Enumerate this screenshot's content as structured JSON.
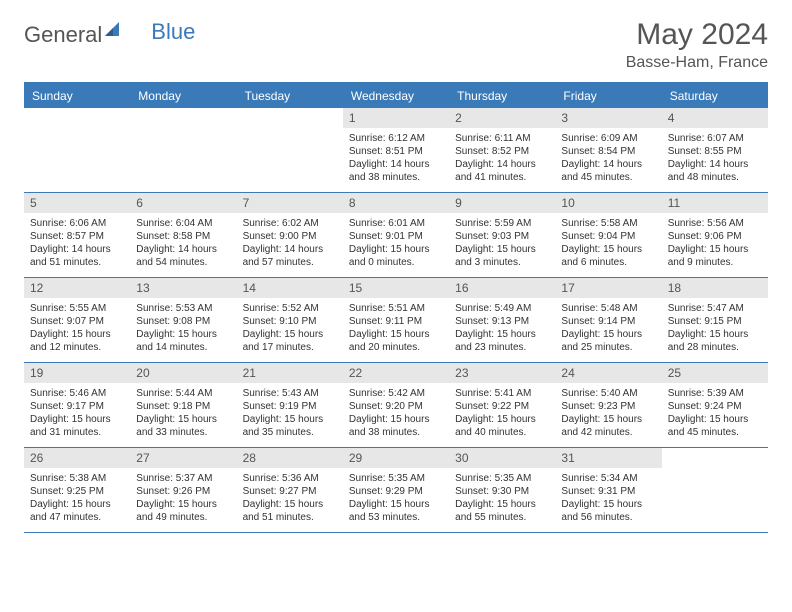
{
  "logo": {
    "text1": "General",
    "text2": "Blue"
  },
  "title": "May 2024",
  "location": "Basse-Ham, France",
  "colors": {
    "accent": "#3a7ab8",
    "dayband": "#e7e7e7",
    "text": "#555555"
  },
  "dayNames": [
    "Sunday",
    "Monday",
    "Tuesday",
    "Wednesday",
    "Thursday",
    "Friday",
    "Saturday"
  ],
  "weeks": [
    [
      {
        "n": "",
        "sr": "",
        "ss": "",
        "dl": ""
      },
      {
        "n": "",
        "sr": "",
        "ss": "",
        "dl": ""
      },
      {
        "n": "",
        "sr": "",
        "ss": "",
        "dl": ""
      },
      {
        "n": "1",
        "sr": "Sunrise: 6:12 AM",
        "ss": "Sunset: 8:51 PM",
        "dl": "Daylight: 14 hours and 38 minutes."
      },
      {
        "n": "2",
        "sr": "Sunrise: 6:11 AM",
        "ss": "Sunset: 8:52 PM",
        "dl": "Daylight: 14 hours and 41 minutes."
      },
      {
        "n": "3",
        "sr": "Sunrise: 6:09 AM",
        "ss": "Sunset: 8:54 PM",
        "dl": "Daylight: 14 hours and 45 minutes."
      },
      {
        "n": "4",
        "sr": "Sunrise: 6:07 AM",
        "ss": "Sunset: 8:55 PM",
        "dl": "Daylight: 14 hours and 48 minutes."
      }
    ],
    [
      {
        "n": "5",
        "sr": "Sunrise: 6:06 AM",
        "ss": "Sunset: 8:57 PM",
        "dl": "Daylight: 14 hours and 51 minutes."
      },
      {
        "n": "6",
        "sr": "Sunrise: 6:04 AM",
        "ss": "Sunset: 8:58 PM",
        "dl": "Daylight: 14 hours and 54 minutes."
      },
      {
        "n": "7",
        "sr": "Sunrise: 6:02 AM",
        "ss": "Sunset: 9:00 PM",
        "dl": "Daylight: 14 hours and 57 minutes."
      },
      {
        "n": "8",
        "sr": "Sunrise: 6:01 AM",
        "ss": "Sunset: 9:01 PM",
        "dl": "Daylight: 15 hours and 0 minutes."
      },
      {
        "n": "9",
        "sr": "Sunrise: 5:59 AM",
        "ss": "Sunset: 9:03 PM",
        "dl": "Daylight: 15 hours and 3 minutes."
      },
      {
        "n": "10",
        "sr": "Sunrise: 5:58 AM",
        "ss": "Sunset: 9:04 PM",
        "dl": "Daylight: 15 hours and 6 minutes."
      },
      {
        "n": "11",
        "sr": "Sunrise: 5:56 AM",
        "ss": "Sunset: 9:06 PM",
        "dl": "Daylight: 15 hours and 9 minutes."
      }
    ],
    [
      {
        "n": "12",
        "sr": "Sunrise: 5:55 AM",
        "ss": "Sunset: 9:07 PM",
        "dl": "Daylight: 15 hours and 12 minutes."
      },
      {
        "n": "13",
        "sr": "Sunrise: 5:53 AM",
        "ss": "Sunset: 9:08 PM",
        "dl": "Daylight: 15 hours and 14 minutes."
      },
      {
        "n": "14",
        "sr": "Sunrise: 5:52 AM",
        "ss": "Sunset: 9:10 PM",
        "dl": "Daylight: 15 hours and 17 minutes."
      },
      {
        "n": "15",
        "sr": "Sunrise: 5:51 AM",
        "ss": "Sunset: 9:11 PM",
        "dl": "Daylight: 15 hours and 20 minutes."
      },
      {
        "n": "16",
        "sr": "Sunrise: 5:49 AM",
        "ss": "Sunset: 9:13 PM",
        "dl": "Daylight: 15 hours and 23 minutes."
      },
      {
        "n": "17",
        "sr": "Sunrise: 5:48 AM",
        "ss": "Sunset: 9:14 PM",
        "dl": "Daylight: 15 hours and 25 minutes."
      },
      {
        "n": "18",
        "sr": "Sunrise: 5:47 AM",
        "ss": "Sunset: 9:15 PM",
        "dl": "Daylight: 15 hours and 28 minutes."
      }
    ],
    [
      {
        "n": "19",
        "sr": "Sunrise: 5:46 AM",
        "ss": "Sunset: 9:17 PM",
        "dl": "Daylight: 15 hours and 31 minutes."
      },
      {
        "n": "20",
        "sr": "Sunrise: 5:44 AM",
        "ss": "Sunset: 9:18 PM",
        "dl": "Daylight: 15 hours and 33 minutes."
      },
      {
        "n": "21",
        "sr": "Sunrise: 5:43 AM",
        "ss": "Sunset: 9:19 PM",
        "dl": "Daylight: 15 hours and 35 minutes."
      },
      {
        "n": "22",
        "sr": "Sunrise: 5:42 AM",
        "ss": "Sunset: 9:20 PM",
        "dl": "Daylight: 15 hours and 38 minutes."
      },
      {
        "n": "23",
        "sr": "Sunrise: 5:41 AM",
        "ss": "Sunset: 9:22 PM",
        "dl": "Daylight: 15 hours and 40 minutes."
      },
      {
        "n": "24",
        "sr": "Sunrise: 5:40 AM",
        "ss": "Sunset: 9:23 PM",
        "dl": "Daylight: 15 hours and 42 minutes."
      },
      {
        "n": "25",
        "sr": "Sunrise: 5:39 AM",
        "ss": "Sunset: 9:24 PM",
        "dl": "Daylight: 15 hours and 45 minutes."
      }
    ],
    [
      {
        "n": "26",
        "sr": "Sunrise: 5:38 AM",
        "ss": "Sunset: 9:25 PM",
        "dl": "Daylight: 15 hours and 47 minutes."
      },
      {
        "n": "27",
        "sr": "Sunrise: 5:37 AM",
        "ss": "Sunset: 9:26 PM",
        "dl": "Daylight: 15 hours and 49 minutes."
      },
      {
        "n": "28",
        "sr": "Sunrise: 5:36 AM",
        "ss": "Sunset: 9:27 PM",
        "dl": "Daylight: 15 hours and 51 minutes."
      },
      {
        "n": "29",
        "sr": "Sunrise: 5:35 AM",
        "ss": "Sunset: 9:29 PM",
        "dl": "Daylight: 15 hours and 53 minutes."
      },
      {
        "n": "30",
        "sr": "Sunrise: 5:35 AM",
        "ss": "Sunset: 9:30 PM",
        "dl": "Daylight: 15 hours and 55 minutes."
      },
      {
        "n": "31",
        "sr": "Sunrise: 5:34 AM",
        "ss": "Sunset: 9:31 PM",
        "dl": "Daylight: 15 hours and 56 minutes."
      },
      {
        "n": "",
        "sr": "",
        "ss": "",
        "dl": ""
      }
    ]
  ]
}
